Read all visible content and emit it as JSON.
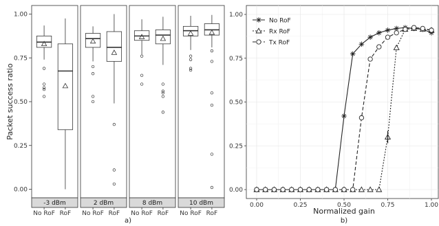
{
  "chart_data": [
    {
      "type": "box",
      "panel_label": "a)",
      "ylabel": "Packet success ratio",
      "ylim": [
        0,
        1
      ],
      "yticks": [
        "0.00",
        "0.25",
        "0.50",
        "0.75",
        "1.00"
      ],
      "categories": [
        "No RoF",
        "RoF"
      ],
      "facets": [
        {
          "label": "-3 dBm",
          "boxes": [
            {
              "category": "No RoF",
              "q1": 0.81,
              "median": 0.84,
              "q3": 0.875,
              "whisker_low": 0.74,
              "whisker_high": 0.935,
              "mean": 0.83,
              "outliers": [
                0.69,
                0.6,
                0.58,
                0.57,
                0.53
              ]
            },
            {
              "category": "RoF",
              "q1": 0.34,
              "median": 0.675,
              "q3": 0.83,
              "whisker_low": 0.0,
              "whisker_high": 0.975,
              "mean": 0.59,
              "outliers": []
            }
          ]
        },
        {
          "label": "2 dBm",
          "boxes": [
            {
              "category": "No RoF",
              "q1": 0.81,
              "median": 0.86,
              "q3": 0.89,
              "whisker_low": 0.73,
              "whisker_high": 0.93,
              "mean": 0.845,
              "outliers": [
                0.7,
                0.66,
                0.53,
                0.5
              ]
            },
            {
              "category": "RoF",
              "q1": 0.73,
              "median": 0.81,
              "q3": 0.9,
              "whisker_low": 0.49,
              "whisker_high": 1.0,
              "mean": 0.78,
              "outliers": [
                0.37,
                0.11,
                0.03
              ]
            }
          ]
        },
        {
          "label": "8 dBm",
          "boxes": [
            {
              "category": "No RoF",
              "q1": 0.85,
              "median": 0.875,
              "q3": 0.905,
              "whisker_low": 0.77,
              "whisker_high": 0.97,
              "mean": 0.87,
              "outliers": [
                0.76,
                0.65,
                0.6
              ]
            },
            {
              "category": "RoF",
              "q1": 0.83,
              "median": 0.88,
              "q3": 0.91,
              "whisker_low": 0.71,
              "whisker_high": 0.985,
              "mean": 0.86,
              "outliers": [
                0.6,
                0.56,
                0.55,
                0.53,
                0.44
              ]
            }
          ]
        },
        {
          "label": "10 dBm",
          "boxes": [
            {
              "category": "No RoF",
              "q1": 0.875,
              "median": 0.905,
              "q3": 0.93,
              "whisker_low": 0.795,
              "whisker_high": 0.99,
              "mean": 0.89,
              "outliers": [
                0.76,
                0.74,
                0.69,
                0.68
              ]
            },
            {
              "category": "RoF",
              "q1": 0.88,
              "median": 0.91,
              "q3": 0.945,
              "whisker_low": 0.81,
              "whisker_high": 0.995,
              "mean": 0.895,
              "outliers": [
                0.79,
                0.73,
                0.55,
                0.48,
                0.2,
                0.01
              ]
            }
          ]
        }
      ]
    },
    {
      "type": "line",
      "panel_label": "b)",
      "xlabel": "Normalized gain",
      "ylabel": "",
      "xlim": [
        0,
        1
      ],
      "ylim": [
        0,
        1
      ],
      "xticks": [
        "0.00",
        "0.25",
        "0.50",
        "0.75",
        "1.00"
      ],
      "yticks": [
        "0.00",
        "0.25",
        "0.50",
        "0.75",
        "1.00"
      ],
      "grid": true,
      "legend_position": "top-left",
      "series": [
        {
          "name": "No RoF",
          "marker": "asterisk",
          "dash": "solid",
          "x": [
            0.0,
            0.05,
            0.1,
            0.15,
            0.2,
            0.25,
            0.3,
            0.35,
            0.4,
            0.45,
            0.5,
            0.55,
            0.6,
            0.65,
            0.7,
            0.75,
            0.8,
            0.85,
            0.9,
            0.95,
            1.0
          ],
          "y": [
            0,
            0,
            0,
            0,
            0,
            0,
            0,
            0,
            0,
            0,
            0.42,
            0.775,
            0.83,
            0.87,
            0.895,
            0.91,
            0.92,
            0.925,
            0.92,
            0.915,
            0.895
          ]
        },
        {
          "name": "Rx RoF",
          "marker": "triangle",
          "dash": "dotted",
          "x": [
            0.0,
            0.05,
            0.1,
            0.15,
            0.2,
            0.25,
            0.3,
            0.35,
            0.4,
            0.45,
            0.5,
            0.55,
            0.6,
            0.65,
            0.7,
            0.75,
            0.8,
            0.85,
            0.9,
            0.95,
            1.0
          ],
          "y": [
            0,
            0,
            0,
            0,
            0,
            0,
            0,
            0,
            0,
            0,
            0,
            0,
            0,
            0,
            0,
            0.3,
            0.81,
            0.915,
            0.92,
            0.915,
            0.91
          ]
        },
        {
          "name": "Tx RoF",
          "marker": "circle",
          "dash": "dashed",
          "x": [
            0.0,
            0.05,
            0.1,
            0.15,
            0.2,
            0.25,
            0.3,
            0.35,
            0.4,
            0.45,
            0.5,
            0.55,
            0.6,
            0.65,
            0.7,
            0.75,
            0.8,
            0.85,
            0.9,
            0.95,
            1.0
          ],
          "y": [
            0,
            0,
            0,
            0,
            0,
            0,
            0,
            0,
            0,
            0,
            0,
            0,
            0.41,
            0.745,
            0.815,
            0.87,
            0.895,
            0.915,
            0.925,
            0.92,
            0.91
          ]
        }
      ]
    }
  ]
}
